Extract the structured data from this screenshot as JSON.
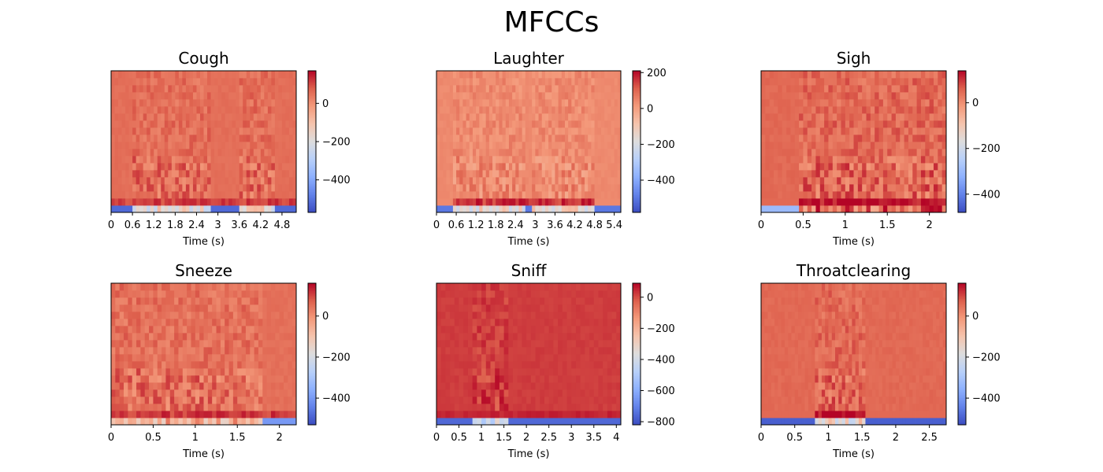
{
  "figure": {
    "title": "MFCCs"
  },
  "chart_data": [
    {
      "type": "heatmap",
      "title": "Cough",
      "xlabel": "Time (s)",
      "xlim": [
        0,
        5.2
      ],
      "xticks": [
        0,
        0.6,
        1.2,
        1.8,
        2.4,
        3,
        3.6,
        4.2,
        4.8
      ],
      "xtick_labels": [
        "0",
        "0.6",
        "1.2",
        "1.8",
        "2.4",
        "3",
        "3.6",
        "4.2",
        "4.8"
      ],
      "colorbar": {
        "min": -570,
        "max": 170,
        "ticks": [
          0,
          -200,
          -400
        ],
        "tick_labels": [
          "0",
          "−200",
          "−400"
        ],
        "colormap": "coolwarm"
      },
      "profile": {
        "n_coeffs": 20,
        "n_frames": 52,
        "c0_frames": [
          [
            0,
            52,
            -520
          ]
        ],
        "c1_band": [
          [
            0,
            52,
            110
          ]
        ],
        "mid_value": 55,
        "active": [
          [
            0.6,
            2.8
          ],
          [
            3.6,
            4.6
          ]
        ]
      }
    },
    {
      "type": "heatmap",
      "title": "Laughter",
      "xlabel": "Time (s)",
      "xlim": [
        0,
        5.6
      ],
      "xticks": [
        0,
        0.6,
        1.2,
        1.8,
        2.4,
        3,
        3.6,
        4.2,
        4.8,
        5.4
      ],
      "xtick_labels": [
        "0",
        "0.6",
        "1.2",
        "1.8",
        "2.4",
        "3",
        "3.6",
        "4.2",
        "4.8",
        "5.4"
      ],
      "colorbar": {
        "min": -580,
        "max": 210,
        "ticks": [
          200,
          0,
          -200,
          -400
        ],
        "tick_labels": [
          "200",
          "0",
          "−200",
          "−400"
        ],
        "colormap": "coolwarm"
      },
      "profile": {
        "n_coeffs": 20,
        "n_frames": 56,
        "c0_frames": [
          [
            0,
            56,
            -500
          ]
        ],
        "c1_band": [
          [
            0.5,
            4.8,
            160
          ]
        ],
        "mid_value": 40,
        "active": [
          [
            0.5,
            2.7
          ],
          [
            2.9,
            4.8
          ]
        ]
      }
    },
    {
      "type": "heatmap",
      "title": "Sigh",
      "xlabel": "Time (s)",
      "xlim": [
        0,
        2.2
      ],
      "xticks": [
        0,
        0.5,
        1,
        1.5,
        2
      ],
      "xtick_labels": [
        "0",
        "0.5",
        "1",
        "1.5",
        "2"
      ],
      "colorbar": {
        "min": -480,
        "max": 140,
        "ticks": [
          0,
          -200,
          -400
        ],
        "tick_labels": [
          "0",
          "−200",
          "−400"
        ],
        "colormap": "coolwarm"
      },
      "profile": {
        "n_coeffs": 20,
        "n_frames": 44,
        "c0_frames": [
          [
            0,
            44,
            -300
          ]
        ],
        "c1_band": [
          [
            0.45,
            2.2,
            130
          ]
        ],
        "mid_value": 50,
        "active": [
          [
            0.45,
            2.2
          ]
        ]
      }
    },
    {
      "type": "heatmap",
      "title": "Sneeze",
      "xlabel": "Time (s)",
      "xlim": [
        0,
        2.2
      ],
      "xticks": [
        0,
        0.5,
        1,
        1.5,
        2
      ],
      "xtick_labels": [
        "0",
        "0.5",
        "1",
        "1.5",
        "2"
      ],
      "colorbar": {
        "min": -530,
        "max": 160,
        "ticks": [
          0,
          -200,
          -400
        ],
        "tick_labels": [
          "0",
          "−200",
          "−400"
        ],
        "colormap": "coolwarm"
      },
      "profile": {
        "n_coeffs": 20,
        "n_frames": 44,
        "c0_frames": [
          [
            0,
            44,
            -400
          ]
        ],
        "c1_band": [
          [
            0,
            2.2,
            110
          ]
        ],
        "mid_value": 50,
        "active": [
          [
            0,
            1.8
          ]
        ]
      }
    },
    {
      "type": "heatmap",
      "title": "Sniff",
      "xlabel": "Time (s)",
      "xlim": [
        0,
        4.1
      ],
      "xticks": [
        0,
        0.5,
        1,
        1.5,
        2,
        2.5,
        3,
        3.5,
        4
      ],
      "xtick_labels": [
        "0",
        "0.5",
        "1",
        "1.5",
        "2",
        "2.5",
        "3",
        "3.5",
        "4"
      ],
      "colorbar": {
        "min": -820,
        "max": 90,
        "ticks": [
          0,
          -200,
          -400,
          -600,
          -800
        ],
        "tick_labels": [
          "0",
          "−200",
          "−400",
          "−600",
          "−800"
        ],
        "colormap": "coolwarm"
      },
      "profile": {
        "n_coeffs": 20,
        "n_frames": 41,
        "c0_frames": [
          [
            0,
            41,
            -760
          ]
        ],
        "c1_band": [
          [
            0,
            4.1,
            50
          ]
        ],
        "mid_value": 20,
        "active": [
          [
            0.8,
            1.6
          ]
        ]
      }
    },
    {
      "type": "heatmap",
      "title": "Throatclearing",
      "xlabel": "Time (s)",
      "xlim": [
        0,
        2.75
      ],
      "xticks": [
        0,
        0.5,
        1,
        1.5,
        2,
        2.5
      ],
      "xtick_labels": [
        "0",
        "0.5",
        "1",
        "1.5",
        "2",
        "2.5"
      ],
      "colorbar": {
        "min": -530,
        "max": 160,
        "ticks": [
          0,
          -200,
          -400
        ],
        "tick_labels": [
          "0",
          "−200",
          "−400"
        ],
        "colormap": "coolwarm"
      },
      "profile": {
        "n_coeffs": 20,
        "n_frames": 55,
        "c0_frames": [
          [
            0,
            2.75,
            -500
          ]
        ],
        "c1_band": [
          [
            0.8,
            1.55,
            150
          ]
        ],
        "mid_value": 60,
        "active": [
          [
            0.8,
            1.55
          ]
        ]
      }
    }
  ]
}
